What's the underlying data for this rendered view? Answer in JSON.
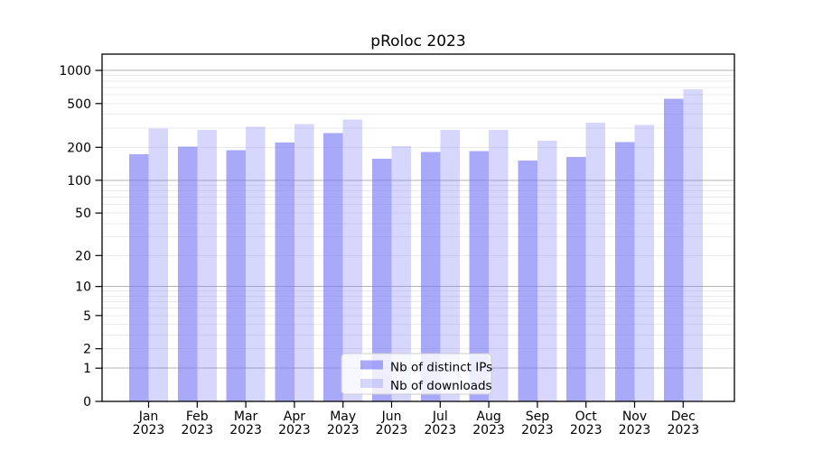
{
  "chart_data": {
    "type": "bar",
    "title": "pRoloc 2023",
    "categories": [
      "Jan",
      "Feb",
      "Mar",
      "Apr",
      "May",
      "Jun",
      "Jul",
      "Aug",
      "Sep",
      "Oct",
      "Nov",
      "Dec"
    ],
    "year": "2023",
    "series": [
      {
        "name": "Nb of distinct IPs",
        "color": "rgba(123,123,247,0.65)",
        "values": [
          173,
          204,
          188,
          222,
          271,
          158,
          181,
          184,
          151,
          163,
          224,
          555
        ]
      },
      {
        "name": "Nb of downloads",
        "color": "rgba(123,123,247,0.30)",
        "values": [
          296,
          287,
          307,
          327,
          357,
          205,
          287,
          287,
          230,
          335,
          321,
          674
        ]
      }
    ],
    "yticks": [
      0,
      1,
      2,
      5,
      10,
      20,
      50,
      100,
      200,
      500,
      1000
    ],
    "yscale": "log10(1+x)",
    "ylim": [
      0,
      1404
    ],
    "xlabel": "",
    "ylabel": "",
    "grid": {
      "minor_color": "#ebebeb",
      "major_color": "#b3b3b3",
      "major_lines_at": [
        1,
        10,
        100,
        1000
      ]
    },
    "legend_position": "lower center",
    "colors": {
      "bar_base": "#7b7bf7",
      "axis": "#000000",
      "legend_border": "#cccccc",
      "legend_background": "rgba(255,255,255,0.8)"
    }
  }
}
